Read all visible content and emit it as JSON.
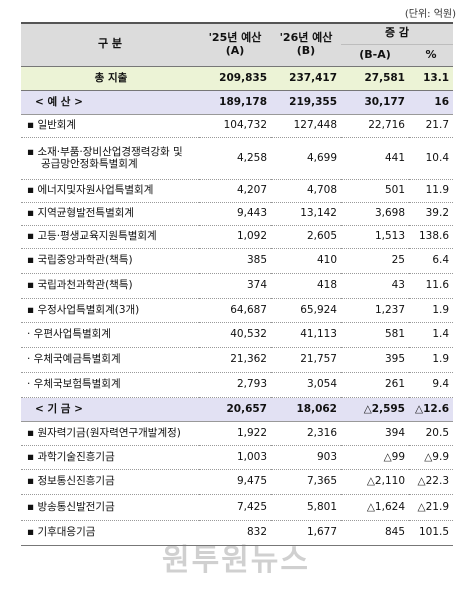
{
  "unit_note": "(단위: 억원)",
  "header": {
    "category": "구 분",
    "col_a_line1": "'25년 예산",
    "col_a_line2": "(A)",
    "col_b_line1": "'26년 예산",
    "col_b_line2": "(B)",
    "change": "증 감",
    "diff": "(B-A)",
    "pct": "%"
  },
  "rows": [
    {
      "label": "총 지출",
      "a": "209,835",
      "b": "237,417",
      "diff": "27,581",
      "pct": "13.1"
    },
    {
      "label": "< 예 산 >",
      "a": "189,178",
      "b": "219,355",
      "diff": "30,177",
      "pct": "16"
    },
    {
      "label": "▪ 일반회계",
      "a": "104,732",
      "b": "127,448",
      "diff": "22,716",
      "pct": "21.7"
    },
    {
      "label": "▪ 소재·부품·장비산업경쟁력강화 및",
      "label2": "공급망안정화특별회계",
      "a": "4,258",
      "b": "4,699",
      "diff": "441",
      "pct": "10.4"
    },
    {
      "label": "▪ 에너지및자원사업특별회계",
      "a": "4,207",
      "b": "4,708",
      "diff": "501",
      "pct": "11.9"
    },
    {
      "label": "▪ 지역균형발전특별회계",
      "a": "9,443",
      "b": "13,142",
      "diff": "3,698",
      "pct": "39.2"
    },
    {
      "label": "▪ 고등·평생교육지원특별회계",
      "a": "1,092",
      "b": "2,605",
      "diff": "1,513",
      "pct": "138.6"
    },
    {
      "label": "▪ 국립중앙과학관(책특)",
      "a": "385",
      "b": "410",
      "diff": "25",
      "pct": "6.4"
    },
    {
      "label": "▪ 국립과천과학관(책특)",
      "a": "374",
      "b": "418",
      "diff": "43",
      "pct": "11.6"
    },
    {
      "label": "▪ 우정사업특별회계(3개)",
      "a": "64,687",
      "b": "65,924",
      "diff": "1,237",
      "pct": "1.9"
    },
    {
      "label": "· 우편사업특별회계",
      "a": "40,532",
      "b": "41,113",
      "diff": "581",
      "pct": "1.4"
    },
    {
      "label": "· 우체국예금특별회계",
      "a": "21,362",
      "b": "21,757",
      "diff": "395",
      "pct": "1.9"
    },
    {
      "label": "· 우체국보험특별회계",
      "a": "2,793",
      "b": "3,054",
      "diff": "261",
      "pct": "9.4"
    },
    {
      "label": "< 기 금 >",
      "a": "20,657",
      "b": "18,062",
      "diff": "△2,595",
      "pct": "△12.6"
    },
    {
      "label": "▪ 원자력기금(원자력연구개발계정)",
      "a": "1,922",
      "b": "2,316",
      "diff": "394",
      "pct": "20.5"
    },
    {
      "label": "▪ 과학기술진흥기금",
      "a": "1,003",
      "b": "903",
      "diff": "△99",
      "pct": "△9.9"
    },
    {
      "label": "▪ 정보통신진흥기금",
      "a": "9,475",
      "b": "7,365",
      "diff": "△2,110",
      "pct": "△22.3"
    },
    {
      "label": "▪ 방송통신발전기금",
      "a": "7,425",
      "b": "5,801",
      "diff": "△1,624",
      "pct": "△21.9"
    },
    {
      "label": "▪ 기후대응기금",
      "a": "832",
      "b": "1,677",
      "diff": "845",
      "pct": "101.5"
    }
  ],
  "watermark": "원투원뉴스"
}
